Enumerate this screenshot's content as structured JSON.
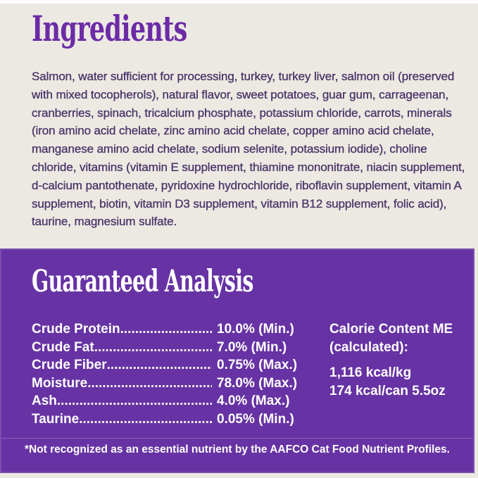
{
  "colors": {
    "page_bg": "#ECE9E2",
    "top_strip": "#FDFCFA",
    "heading_text": "#6C2BA6",
    "body_text": "#4B3669",
    "panel_bg": "#6733A4",
    "panel_text": "#FFFFFF"
  },
  "ingredients": {
    "title": "Ingredients",
    "text": "Salmon, water sufficient for processing, turkey, turkey liver, salmon oil (preserved with mixed tocopherols), natural flavor, sweet potatoes, guar gum, carrageenan, cranberries, spinach, tricalcium phosphate, potassium chloride, carrots, minerals (iron amino acid chelate, zinc amino acid chelate, copper amino acid chelate, manganese amino acid chelate, sodium selenite, potassium iodide), choline chloride, vitamins (vitamin E supplement, thiamine mononitrate, niacin supplement, d-calcium pantothenate, pyridoxine hydrochloride, riboflavin supplement, vitamin A supplement, biotin, vitamin D3 supplement, vitamin B12 supplement, folic acid),  taurine, magnesium sulfate."
  },
  "guaranteed_analysis": {
    "title": "Guaranteed Analysis",
    "leader_dots": "....................................................................................",
    "rows": [
      {
        "label": "Crude Protein",
        "value": "10.0% (Min.)"
      },
      {
        "label": "Crude Fat",
        "value": "7.0% (Min.)"
      },
      {
        "label": "Crude Fiber",
        "value": "0.75% (Max.)"
      },
      {
        "label": "Moisture",
        "value": "78.0% (Max.)"
      },
      {
        "label": "Ash",
        "value": "4.0% (Max.)"
      },
      {
        "label": "Taurine",
        "value": "0.05% (Min.)"
      }
    ],
    "calorie_content": {
      "heading": "Calorie Content ME (calculated):",
      "lines": [
        "1,116 kcal/kg",
        "174 kcal/can 5.5oz"
      ]
    },
    "footnote": "*Not recognized as an essential nutrient by the AAFCO Cat Food Nutrient Profiles."
  }
}
